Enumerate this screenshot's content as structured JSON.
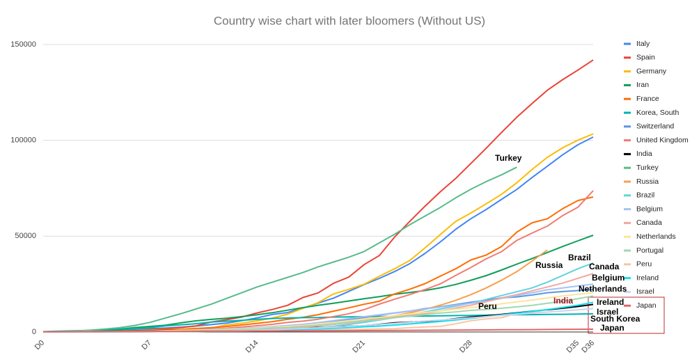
{
  "chart_data": {
    "type": "line",
    "title": "Country wise chart with later bloomers (Without US)",
    "categories": [
      "D0",
      null,
      null,
      null,
      null,
      null,
      null,
      "D7",
      null,
      null,
      null,
      null,
      null,
      null,
      "D14",
      null,
      null,
      null,
      null,
      null,
      null,
      "D21",
      null,
      null,
      null,
      null,
      null,
      null,
      "D28",
      null,
      null,
      null,
      null,
      null,
      null,
      "D35",
      "D36"
    ],
    "ylim": [
      0,
      150000
    ],
    "yticks": [
      0,
      50000,
      100000,
      150000
    ],
    "grid": true,
    "legend": "right",
    "series": [
      {
        "name": "Italy",
        "color": "#4285f4",
        "values": [
          150,
          230,
          320,
          450,
          650,
          890,
          1130,
          1700,
          2040,
          2500,
          3100,
          3860,
          4640,
          5880,
          7380,
          9170,
          10150,
          12460,
          15110,
          17660,
          21160,
          24750,
          27980,
          31510,
          35710,
          41040,
          47020,
          53580,
          59140,
          63930,
          69180,
          74390,
          80590,
          86500,
          92470,
          97690,
          101740
        ]
      },
      {
        "name": "Spain",
        "color": "#ea4335",
        "values": [
          120,
          165,
          228,
          282,
          401,
          525,
          674,
          1231,
          1695,
          2277,
          3146,
          5232,
          6391,
          7798,
          9942,
          11748,
          13910,
          17963,
          20410,
          25374,
          28603,
          35136,
          39885,
          49515,
          57786,
          65719,
          73235,
          80110,
          87956,
          95923,
          104118,
          112065,
          119199,
          126168,
          131646,
          136675,
          141942
        ]
      },
      {
        "name": "Germany",
        "color": "#fbbc04",
        "values": [
          130,
          159,
          196,
          262,
          482,
          670,
          799,
          1040,
          1176,
          1457,
          1908,
          2078,
          3675,
          4585,
          5795,
          7272,
          9257,
          12327,
          15320,
          19848,
          22213,
          24873,
          29056,
          32986,
          37323,
          43938,
          50871,
          57695,
          62095,
          66885,
          71808,
          77872,
          84794,
          91159,
          96092,
          100123,
          103374
        ]
      },
      {
        "name": "Iran",
        "color": "#0f9d58",
        "values": [
          139,
          245,
          388,
          593,
          978,
          1501,
          2336,
          2922,
          3513,
          4747,
          5823,
          6566,
          7161,
          8042,
          9000,
          10075,
          11364,
          12729,
          13938,
          14991,
          16169,
          17361,
          18407,
          19644,
          20610,
          21638,
          23049,
          24811,
          27017,
          29406,
          32332,
          35408,
          38309,
          41495,
          44605,
          47593,
          50468
        ]
      },
      {
        "name": "France",
        "color": "#ff6d01",
        "values": [
          100,
          130,
          191,
          204,
          288,
          380,
          656,
          957,
          1134,
          1217,
          1792,
          2281,
          2876,
          3661,
          4499,
          5423,
          6633,
          7652,
          9043,
          10871,
          12612,
          14459,
          16018,
          19856,
          22304,
          25233,
          29155,
          32964,
          37575,
          40174,
          44550,
          52128,
          56989,
          59105,
          64338,
          68605,
          70478
        ]
      },
      {
        "name": "Korea, South",
        "color": "#00b3ad",
        "values": [
          204,
          433,
          602,
          833,
          977,
          1261,
          1766,
          2337,
          3150,
          3736,
          4335,
          5186,
          5621,
          6088,
          6593,
          7041,
          7314,
          7478,
          7513,
          7755,
          7869,
          7979,
          8086,
          8162,
          8236,
          8320,
          8413,
          8565,
          8652,
          8799,
          8897,
          8961,
          9037,
          9137,
          9241,
          9332,
          9478
        ]
      },
      {
        "name": "Switzerland",
        "color": "#5b95e0",
        "values": [
          30,
          40,
          60,
          90,
          120,
          210,
          280,
          340,
          370,
          490,
          650,
          870,
          1130,
          1360,
          1800,
          2200,
          2700,
          3030,
          4220,
          5300,
          6580,
          7470,
          8790,
          9880,
          10900,
          12200,
          13200,
          14300,
          15500,
          16600,
          17800,
          18300,
          19300,
          20500,
          21100,
          21600,
          22200
        ]
      },
      {
        "name": "United Kingdom",
        "color": "#f07b72",
        "values": [
          90,
          115,
          163,
          206,
          273,
          321,
          382,
          456,
          460,
          798,
          1140,
          1543,
          1950,
          2626,
          3269,
          3983,
          5018,
          5683,
          6650,
          8077,
          9529,
          11658,
          14543,
          17089,
          19522,
          22141,
          25150,
          29474,
          33718,
          38168,
          41903,
          47806,
          51608,
          55242,
          60733,
          65077,
          73758
        ]
      },
      {
        "name": "India",
        "color": "#000000",
        "values": [
          100,
          150,
          200,
          300,
          400,
          500,
          600,
          700,
          800,
          900,
          1000,
          1100,
          1200,
          1400,
          1600,
          1800,
          2000,
          2200,
          2400,
          2700,
          3000,
          3300,
          4000,
          4800,
          5200,
          5600,
          6000,
          7000,
          7800,
          8400,
          9200,
          10000,
          10800,
          11600,
          12400,
          13300,
          14400
        ]
      },
      {
        "name": "Turkey",
        "color": "#57bb8a",
        "values": [
          100,
          200,
          400,
          900,
          1500,
          2200,
          3400,
          5000,
          7300,
          9500,
          12000,
          14500,
          17500,
          20500,
          23500,
          26000,
          28500,
          31000,
          34000,
          36500,
          39000,
          42000,
          46500,
          51000,
          56000,
          60500,
          65000,
          70000,
          74500,
          78500,
          82000,
          86000,
          null,
          null,
          null,
          null,
          null
        ]
      },
      {
        "name": "Russia",
        "color": "#f6a04d",
        "values": [
          20,
          30,
          60,
          90,
          120,
          150,
          200,
          250,
          300,
          400,
          500,
          650,
          850,
          1100,
          1400,
          1800,
          2300,
          2800,
          3400,
          4100,
          5000,
          6000,
          7200,
          8500,
          10000,
          11800,
          14000,
          16500,
          19500,
          23000,
          27000,
          31500,
          37000,
          42800,
          null,
          null,
          null
        ]
      },
      {
        "name": "Brazil",
        "color": "#5fd3df",
        "values": [
          20,
          25,
          30,
          40,
          50,
          80,
          100,
          150,
          200,
          250,
          300,
          400,
          600,
          800,
          1000,
          1200,
          1500,
          1900,
          2300,
          3000,
          4000,
          5000,
          6200,
          7500,
          9000,
          10500,
          12000,
          13500,
          15000,
          17000,
          19000,
          21000,
          23000,
          26000,
          29500,
          33000,
          36000
        ]
      },
      {
        "name": "Belgium",
        "color": "#a4c2f4",
        "values": [
          100,
          150,
          200,
          250,
          300,
          350,
          450,
          550,
          700,
          900,
          1100,
          1300,
          1600,
          1900,
          2300,
          2800,
          3400,
          4000,
          4900,
          5900,
          7000,
          8000,
          9000,
          10000,
          11000,
          12000,
          13000,
          14000,
          15000,
          16000,
          17500,
          19000,
          20500,
          22000,
          23000,
          24000,
          25000
        ]
      },
      {
        "name": "Canada",
        "color": "#f4a6a0",
        "values": [
          30,
          40,
          60,
          80,
          100,
          150,
          200,
          250,
          300,
          400,
          500,
          600,
          800,
          1000,
          1300,
          1500,
          2000,
          2500,
          3200,
          4000,
          4800,
          5700,
          6700,
          7700,
          8600,
          9600,
          11000,
          12500,
          14000,
          15800,
          17800,
          19500,
          21500,
          23500,
          25500,
          28000,
          30500
        ]
      },
      {
        "name": "Netherlands",
        "color": "#fde49b",
        "values": [
          80,
          120,
          170,
          210,
          250,
          300,
          380,
          470,
          600,
          770,
          940,
          1100,
          1360,
          1600,
          1950,
          2400,
          2900,
          3400,
          4200,
          5000,
          5900,
          6800,
          7600,
          8500,
          9400,
          10200,
          11000,
          11900,
          12700,
          13600,
          14700,
          15700,
          16600,
          17800,
          18800,
          19700,
          20500
        ]
      },
      {
        "name": "Portugal",
        "color": "#9fd8b0",
        "values": [
          20,
          30,
          40,
          60,
          80,
          110,
          170,
          250,
          330,
          450,
          640,
          790,
          1000,
          1280,
          1600,
          2060,
          2360,
          2990,
          3540,
          4270,
          5170,
          5960,
          6400,
          7440,
          8250,
          9030,
          9880,
          10500,
          11300,
          11700,
          12400,
          13100,
          13900,
          15000,
          16000,
          17400,
          18800
        ]
      },
      {
        "name": "Peru",
        "color": "#f7c6a3",
        "values": [
          10,
          20,
          40,
          60,
          70,
          90,
          120,
          150,
          200,
          250,
          300,
          350,
          400,
          480,
          580,
          640,
          700,
          850,
          950,
          1100,
          1300,
          1400,
          1600,
          1750,
          2300,
          2600,
          2950,
          4300,
          5900,
          6800,
          7500,
          9700,
          10300,
          11500,
          null,
          null,
          null
        ]
      },
      {
        "name": "Ireland",
        "color": "#0fe0f0",
        "values": [
          20,
          30,
          40,
          60,
          80,
          100,
          130,
          170,
          220,
          290,
          370,
          460,
          560,
          680,
          830,
          1000,
          1200,
          1400,
          1600,
          1900,
          2300,
          2700,
          3100,
          3600,
          4200,
          4800,
          5500,
          6300,
          7100,
          8000,
          8900,
          9800,
          10700,
          11700,
          12800,
          14000,
          15500
        ]
      },
      {
        "name": "Israel",
        "color": "#cdd2ee",
        "values": [
          20,
          30,
          40,
          50,
          70,
          90,
          120,
          160,
          210,
          280,
          370,
          480,
          600,
          750,
          950,
          1200,
          1500,
          1800,
          2100,
          2500,
          2900,
          3400,
          3900,
          4500,
          5100,
          5700,
          6200,
          6800,
          7400,
          8000,
          8600,
          9200,
          9800,
          10400,
          11000,
          11600,
          12200
        ]
      },
      {
        "name": "Japan",
        "color": "#e06666",
        "values": [
          100,
          120,
          140,
          160,
          180,
          200,
          230,
          260,
          290,
          330,
          360,
          400,
          440,
          480,
          500,
          520,
          550,
          580,
          620,
          650,
          700,
          740,
          780,
          820,
          860,
          900,
          960,
          1000,
          1050,
          1100,
          1150,
          1200,
          1250,
          1300,
          1350,
          1400,
          1450
        ]
      }
    ],
    "annotations": [
      "Turkey",
      "Brazil",
      "Russia",
      "Canada",
      "Belgium",
      "Netherlands",
      "India",
      "Peru",
      "Ireland",
      "Israel",
      "South Korea",
      "Japan"
    ]
  }
}
